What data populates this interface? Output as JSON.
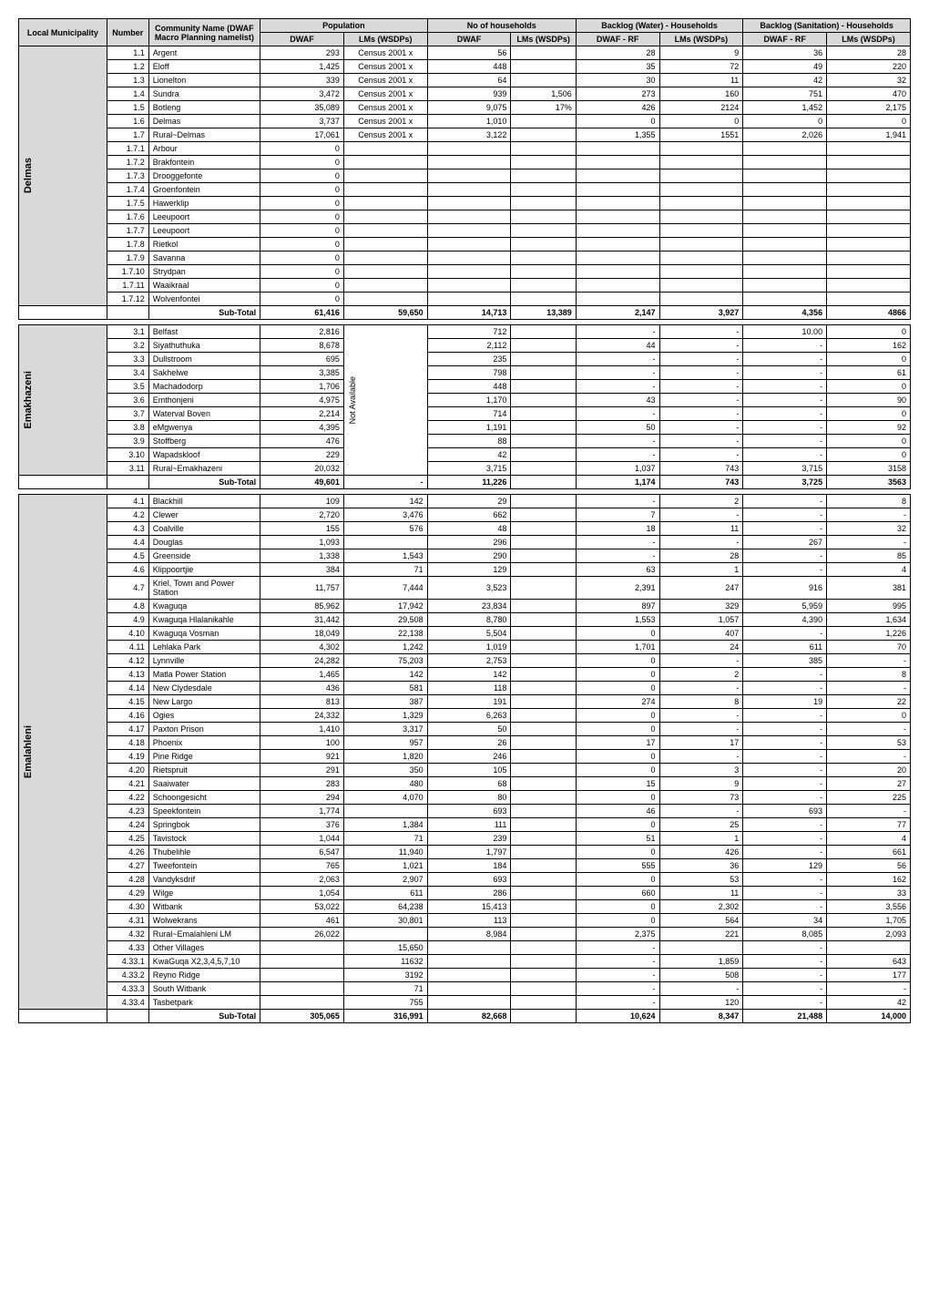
{
  "headers": {
    "local_municipality": "Local Municipality",
    "number": "Number",
    "community_name": "Community Name (DWAF Macro Planning namelist)",
    "population": "Population",
    "no_households": "No of households",
    "backlog_water": "Backlog\n(Water) - Households",
    "backlog_sanitation": "Backlog (Sanitation) - Households",
    "dwaf": "DWAF",
    "lms_wsdps": "LMs (WSDPs)",
    "dwaf_rf": "DWAF - RF",
    "lms_wsdps2": "LMs (WSDPs)",
    "dwaf_rf2": "DWAF - RF",
    "lms_wsdps3": "LMs (WSDPs)",
    "not_available": "Not Available"
  },
  "sections": [
    {
      "muni": "Delmas",
      "rows": [
        {
          "num": "1.1",
          "name": "Argent",
          "dwaf": "293",
          "lms": "Census 2001 x",
          "dwaf2": "56",
          "lms2": "",
          "b1": "28",
          "b2": "9",
          "b3": "36",
          "b4": "28"
        },
        {
          "num": "1.2",
          "name": "Eloff",
          "dwaf": "1,425",
          "lms": "Census 2001 x",
          "dwaf2": "448",
          "lms2": "",
          "b1": "35",
          "b2": "72",
          "b3": "49",
          "b4": "220"
        },
        {
          "num": "1.3",
          "name": "Lionelton",
          "dwaf": "339",
          "lms": "Census 2001 x",
          "dwaf2": "64",
          "lms2": "",
          "b1": "30",
          "b2": "11",
          "b3": "42",
          "b4": "32"
        },
        {
          "num": "1.4",
          "name": "Sundra",
          "dwaf": "3,472",
          "lms": "Census 2001 x",
          "dwaf2": "939",
          "lms2": "1,506",
          "b1": "273",
          "b2": "160",
          "b3": "751",
          "b4": "470"
        },
        {
          "num": "1.5",
          "name": "Botleng",
          "dwaf": "35,089",
          "lms": "Census 2001 x",
          "dwaf2": "9,075",
          "lms2": "17%",
          "b1": "426",
          "b2": "2124",
          "b3": "1,452",
          "b4": "2,175"
        },
        {
          "num": "1.6",
          "name": "Delmas",
          "dwaf": "3,737",
          "lms": "Census 2001 x",
          "dwaf2": "1,010",
          "lms2": "",
          "b1": "0",
          "b2": "0",
          "b3": "0",
          "b4": "0"
        },
        {
          "num": "1.7",
          "name": "Rural~Delmas",
          "dwaf": "17,061",
          "lms": "Census 2001 x",
          "dwaf2": "3,122",
          "lms2": "",
          "b1": "1,355",
          "b2": "1551",
          "b3": "2,026",
          "b4": "1,941"
        },
        {
          "num": "1.7.1",
          "name": "Arbour",
          "dwaf": "0",
          "lms": "",
          "dwaf2": "",
          "lms2": "",
          "b1": "",
          "b2": "",
          "b3": "",
          "b4": ""
        },
        {
          "num": "1.7.2",
          "name": "Brakfontein",
          "dwaf": "0",
          "lms": "",
          "dwaf2": "",
          "lms2": "",
          "b1": "",
          "b2": "",
          "b3": "",
          "b4": ""
        },
        {
          "num": "1.7.3",
          "name": "Drooggefonte",
          "dwaf": "0",
          "lms": "",
          "dwaf2": "",
          "lms2": "",
          "b1": "",
          "b2": "",
          "b3": "",
          "b4": ""
        },
        {
          "num": "1.7.4",
          "name": "Groenfontein",
          "dwaf": "0",
          "lms": "",
          "dwaf2": "",
          "lms2": "",
          "b1": "",
          "b2": "",
          "b3": "",
          "b4": ""
        },
        {
          "num": "1.7.5",
          "name": "Hawerklip",
          "dwaf": "0",
          "lms": "",
          "dwaf2": "",
          "lms2": "",
          "b1": "",
          "b2": "",
          "b3": "",
          "b4": ""
        },
        {
          "num": "1.7.6",
          "name": "Leeupoort",
          "dwaf": "0",
          "lms": "",
          "dwaf2": "",
          "lms2": "",
          "b1": "",
          "b2": "",
          "b3": "",
          "b4": ""
        },
        {
          "num": "1.7.7",
          "name": "Leeupoort",
          "dwaf": "0",
          "lms": "",
          "dwaf2": "",
          "lms2": "",
          "b1": "",
          "b2": "",
          "b3": "",
          "b4": ""
        },
        {
          "num": "1.7.8",
          "name": "Rietkol",
          "dwaf": "0",
          "lms": "",
          "dwaf2": "",
          "lms2": "",
          "b1": "",
          "b2": "",
          "b3": "",
          "b4": ""
        },
        {
          "num": "1.7.9",
          "name": "Savanna",
          "dwaf": "0",
          "lms": "",
          "dwaf2": "",
          "lms2": "",
          "b1": "",
          "b2": "",
          "b3": "",
          "b4": ""
        },
        {
          "num": "1.7.10",
          "name": "Strydpan",
          "dwaf": "0",
          "lms": "",
          "dwaf2": "",
          "lms2": "",
          "b1": "",
          "b2": "",
          "b3": "",
          "b4": ""
        },
        {
          "num": "1.7.11",
          "name": "Waaikraal",
          "dwaf": "0",
          "lms": "",
          "dwaf2": "",
          "lms2": "",
          "b1": "",
          "b2": "",
          "b3": "",
          "b4": ""
        },
        {
          "num": "1.7.12",
          "name": "Wolvenfontei",
          "dwaf": "0",
          "lms": "",
          "dwaf2": "",
          "lms2": "",
          "b1": "",
          "b2": "",
          "b3": "",
          "b4": ""
        }
      ],
      "subtotal": {
        "name": "Sub-Total",
        "dwaf": "61,416",
        "lms": "59,650",
        "dwaf2": "14,713",
        "lms2": "13,389",
        "b1": "2,147",
        "b2": "3,927",
        "b3": "4,356",
        "b4": "4866"
      }
    },
    {
      "muni": "Emakhazeni",
      "lms_merged": "Not Available",
      "rows": [
        {
          "num": "3.1",
          "name": "Belfast",
          "dwaf": "2,816",
          "dwaf2": "712",
          "b1": "-",
          "b2": "-",
          "b3": "10.00",
          "b4": "0"
        },
        {
          "num": "3.2",
          "name": "Siyathuthuka",
          "dwaf": "8,678",
          "dwaf2": "2,112",
          "b1": "44",
          "b2": "-",
          "b3": "-",
          "b4": "162"
        },
        {
          "num": "3.3",
          "name": "Dullstroom",
          "dwaf": "695",
          "dwaf2": "235",
          "b1": "-",
          "b2": "-",
          "b3": "-",
          "b4": "0"
        },
        {
          "num": "3.4",
          "name": "Sakhelwe",
          "dwaf": "3,385",
          "dwaf2": "798",
          "b1": "-",
          "b2": "-",
          "b3": "-",
          "b4": "61"
        },
        {
          "num": "3.5",
          "name": "Machadodorp",
          "dwaf": "1,706",
          "dwaf2": "448",
          "b1": "-",
          "b2": "-",
          "b3": "-",
          "b4": "0"
        },
        {
          "num": "3.6",
          "name": "Emthonjeni",
          "dwaf": "4,975",
          "dwaf2": "1,170",
          "b1": "43",
          "b2": "-",
          "b3": "-",
          "b4": "90"
        },
        {
          "num": "3.7",
          "name": "Waterval Boven",
          "dwaf": "2,214",
          "dwaf2": "714",
          "b1": "-",
          "b2": "-",
          "b3": "-",
          "b4": "0"
        },
        {
          "num": "3.8",
          "name": "eMgwenya",
          "dwaf": "4,395",
          "dwaf2": "1,191",
          "b1": "50",
          "b2": "-",
          "b3": "-",
          "b4": "92"
        },
        {
          "num": "3.9",
          "name": "Stoffberg",
          "dwaf": "476",
          "dwaf2": "88",
          "b1": "-",
          "b2": "-",
          "b3": "-",
          "b4": "0"
        },
        {
          "num": "3.10",
          "name": "Wapadskloof",
          "dwaf": "229",
          "dwaf2": "42",
          "b1": "-",
          "b2": "-",
          "b3": "-",
          "b4": "0"
        },
        {
          "num": "3.11",
          "name": "Rural~Emakhazeni",
          "dwaf": "20,032",
          "dwaf2": "3,715",
          "b1": "1,037",
          "b2": "743",
          "b3": "3,715",
          "b4": "3158"
        }
      ],
      "subtotal": {
        "name": "Sub-Total",
        "dwaf": "49,601",
        "lms": "-",
        "dwaf2": "11,226",
        "lms2": "",
        "b1": "1,174",
        "b2": "743",
        "b3": "3,725",
        "b4": "3563"
      }
    },
    {
      "muni": "Emalahleni",
      "rows": [
        {
          "num": "4.1",
          "name": "Blackhill",
          "dwaf": "109",
          "lms": "142",
          "dwaf2": "29",
          "b1": "-",
          "b2": "2",
          "b3": "-",
          "b4": "8"
        },
        {
          "num": "4.2",
          "name": "Clewer",
          "dwaf": "2,720",
          "lms": "3,476",
          "dwaf2": "662",
          "b1": "7",
          "b2": "-",
          "b3": "-",
          "b4": "-"
        },
        {
          "num": "4.3",
          "name": "Coalville",
          "dwaf": "155",
          "lms": "576",
          "dwaf2": "48",
          "b1": "18",
          "b2": "11",
          "b3": "-",
          "b4": "32"
        },
        {
          "num": "4.4",
          "name": "Douglas",
          "dwaf": "1,093",
          "lms": "",
          "dwaf2": "296",
          "b1": "-",
          "b2": "-",
          "b3": "267",
          "b4": "-"
        },
        {
          "num": "4.5",
          "name": "Greenside",
          "dwaf": "1,338",
          "lms": "1,543",
          "dwaf2": "290",
          "b1": "-",
          "b2": "28",
          "b3": "-",
          "b4": "85"
        },
        {
          "num": "4.6",
          "name": "Klippoortjie",
          "dwaf": "384",
          "lms": "71",
          "dwaf2": "129",
          "b1": "63",
          "b2": "1",
          "b3": "-",
          "b4": "4"
        },
        {
          "num": "4.7",
          "name": "Kriel, Town and Power Station",
          "dwaf": "11,757",
          "lms": "7,444",
          "dwaf2": "3,523",
          "b1": "2,391",
          "b2": "247",
          "b3": "916",
          "b4": "381"
        },
        {
          "num": "4.8",
          "name": "Kwaguqa",
          "dwaf": "85,962",
          "lms": "17,942",
          "dwaf2": "23,834",
          "b1": "897",
          "b2": "329",
          "b3": "5,959",
          "b4": "995"
        },
        {
          "num": "4.9",
          "name": "Kwaguqa Hlalanikahle",
          "dwaf": "31,442",
          "lms": "29,508",
          "dwaf2": "8,780",
          "b1": "1,553",
          "b2": "1,057",
          "b3": "4,390",
          "b4": "1,634"
        },
        {
          "num": "4.10",
          "name": "Kwaguqa Vosman",
          "dwaf": "18,049",
          "lms": "22,138",
          "dwaf2": "5,504",
          "b1": "0",
          "b2": "407",
          "b3": "-",
          "b4": "1,226"
        },
        {
          "num": "4.11",
          "name": "Lehlaka Park",
          "dwaf": "4,302",
          "lms": "1,242",
          "dwaf2": "1,019",
          "b1": "1,701",
          "b2": "24",
          "b3": "611",
          "b4": "70"
        },
        {
          "num": "4.12",
          "name": "Lynnville",
          "dwaf": "24,282",
          "lms": "75,203",
          "dwaf2": "2,753",
          "b1": "0",
          "b2": "-",
          "b3": "385",
          "b4": "-"
        },
        {
          "num": "4.13",
          "name": "Matla Power Station",
          "dwaf": "1,465",
          "lms": "142",
          "dwaf2": "142",
          "b1": "0",
          "b2": "2",
          "b3": "-",
          "b4": "8"
        },
        {
          "num": "4.14",
          "name": "New Clydesdale",
          "dwaf": "436",
          "lms": "581",
          "dwaf2": "118",
          "b1": "0",
          "b2": "-",
          "b3": "-",
          "b4": "-"
        },
        {
          "num": "4.15",
          "name": "New Largo",
          "dwaf": "813",
          "lms": "387",
          "dwaf2": "191",
          "b1": "274",
          "b2": "8",
          "b3": "19",
          "b4": "22"
        },
        {
          "num": "4.16",
          "name": "Ogies",
          "dwaf": "24,332",
          "lms": "1,329",
          "dwaf2": "6,263",
          "b1": "0",
          "b2": "-",
          "b3": "-",
          "b4": "0"
        },
        {
          "num": "4.17",
          "name": "Paxton Prison",
          "dwaf": "1,410",
          "lms": "3,317",
          "dwaf2": "50",
          "b1": "0",
          "b2": "-",
          "b3": "-",
          "b4": "-"
        },
        {
          "num": "4.18",
          "name": "Phoenix",
          "dwaf": "100",
          "lms": "957",
          "dwaf2": "26",
          "b1": "17",
          "b2": "17",
          "b3": "-",
          "b4": "53"
        },
        {
          "num": "4.19",
          "name": "Pine Ridge",
          "dwaf": "921",
          "lms": "1,820",
          "dwaf2": "246",
          "b1": "0",
          "b2": "-",
          "b3": "-",
          "b4": "-"
        },
        {
          "num": "4.20",
          "name": "Rietspruit",
          "dwaf": "291",
          "lms": "350",
          "dwaf2": "105",
          "b1": "0",
          "b2": "3",
          "b3": "-",
          "b4": "20"
        },
        {
          "num": "4.21",
          "name": "Saaiwater",
          "dwaf": "283",
          "lms": "480",
          "dwaf2": "68",
          "b1": "15",
          "b2": "9",
          "b3": "-",
          "b4": "27"
        },
        {
          "num": "4.22",
          "name": "Schoongesicht",
          "dwaf": "294",
          "lms": "4,070",
          "dwaf2": "80",
          "b1": "0",
          "b2": "73",
          "b3": "-",
          "b4": "225"
        },
        {
          "num": "4.23",
          "name": "Speekfontein",
          "dwaf": "1,774",
          "lms": "",
          "dwaf2": "693",
          "b1": "46",
          "b2": "-",
          "b3": "693",
          "b4": "-"
        },
        {
          "num": "4.24",
          "name": "Springbok",
          "dwaf": "376",
          "lms": "1,384",
          "dwaf2": "111",
          "b1": "0",
          "b2": "25",
          "b3": "-",
          "b4": "77"
        },
        {
          "num": "4.25",
          "name": "Tavistock",
          "dwaf": "1,044",
          "lms": "71",
          "dwaf2": "239",
          "b1": "51",
          "b2": "1",
          "b3": "-",
          "b4": "4"
        },
        {
          "num": "4.26",
          "name": "Thubelihle",
          "dwaf": "6,547",
          "lms": "11,940",
          "dwaf2": "1,797",
          "b1": "0",
          "b2": "426",
          "b3": "-",
          "b4": "661"
        },
        {
          "num": "4.27",
          "name": "Tweefontein",
          "dwaf": "765",
          "lms": "1,021",
          "dwaf2": "184",
          "b1": "555",
          "b2": "36",
          "b3": "129",
          "b4": "56"
        },
        {
          "num": "4.28",
          "name": "Vandyksdrif",
          "dwaf": "2,063",
          "lms": "2,907",
          "dwaf2": "693",
          "b1": "0",
          "b2": "53",
          "b3": "-",
          "b4": "162"
        },
        {
          "num": "4.29",
          "name": "Wilge",
          "dwaf": "1,054",
          "lms": "611",
          "dwaf2": "286",
          "b1": "660",
          "b2": "11",
          "b3": "-",
          "b4": "33"
        },
        {
          "num": "4.30",
          "name": "Witbank",
          "dwaf": "53,022",
          "lms": "64,238",
          "dwaf2": "15,413",
          "b1": "0",
          "b2": "2,302",
          "b3": "-",
          "b4": "3,556"
        },
        {
          "num": "4.31",
          "name": "Wolwekrans",
          "dwaf": "461",
          "lms": "30,801",
          "dwaf2": "113",
          "b1": "0",
          "b2": "564",
          "b3": "34",
          "b4": "1,705"
        },
        {
          "num": "4.32",
          "name": "Rural~Emalahleni LM",
          "dwaf": "26,022",
          "lms": "",
          "dwaf2": "8,984",
          "b1": "2,375",
          "b2": "221",
          "b3": "8,085",
          "b4": "2,093"
        },
        {
          "num": "4.33",
          "name": "Other Villages",
          "dwaf": "",
          "lms": "15,650",
          "dwaf2": "",
          "b1": "-",
          "b2": "",
          "b3": "-",
          "b4": ""
        },
        {
          "num": "4.33.1",
          "name": "KwaGuqa X2,3,4,5,7,10",
          "dwaf": "",
          "lms": "11632",
          "dwaf2": "",
          "b1": "-",
          "b2": "1,859",
          "b3": "-",
          "b4": "643"
        },
        {
          "num": "4.33.2",
          "name": "Reyno Ridge",
          "dwaf": "",
          "lms": "3192",
          "dwaf2": "",
          "b1": "-",
          "b2": "508",
          "b3": "-",
          "b4": "177"
        },
        {
          "num": "4.33.3",
          "name": "South Witbank",
          "dwaf": "",
          "lms": "71",
          "dwaf2": "",
          "b1": "-",
          "b2": "-",
          "b3": "-",
          "b4": "-"
        },
        {
          "num": "4.33.4",
          "name": "Tasbetpark",
          "dwaf": "",
          "lms": "755",
          "dwaf2": "",
          "b1": "-",
          "b2": "120",
          "b3": "-",
          "b4": "42"
        }
      ],
      "subtotal": {
        "name": "Sub-Total",
        "dwaf": "305,065",
        "lms": "316,991",
        "dwaf2": "82,668",
        "lms2": "",
        "b1": "10,624",
        "b2": "8,347",
        "b3": "21,488",
        "b4": "14,000"
      }
    }
  ]
}
